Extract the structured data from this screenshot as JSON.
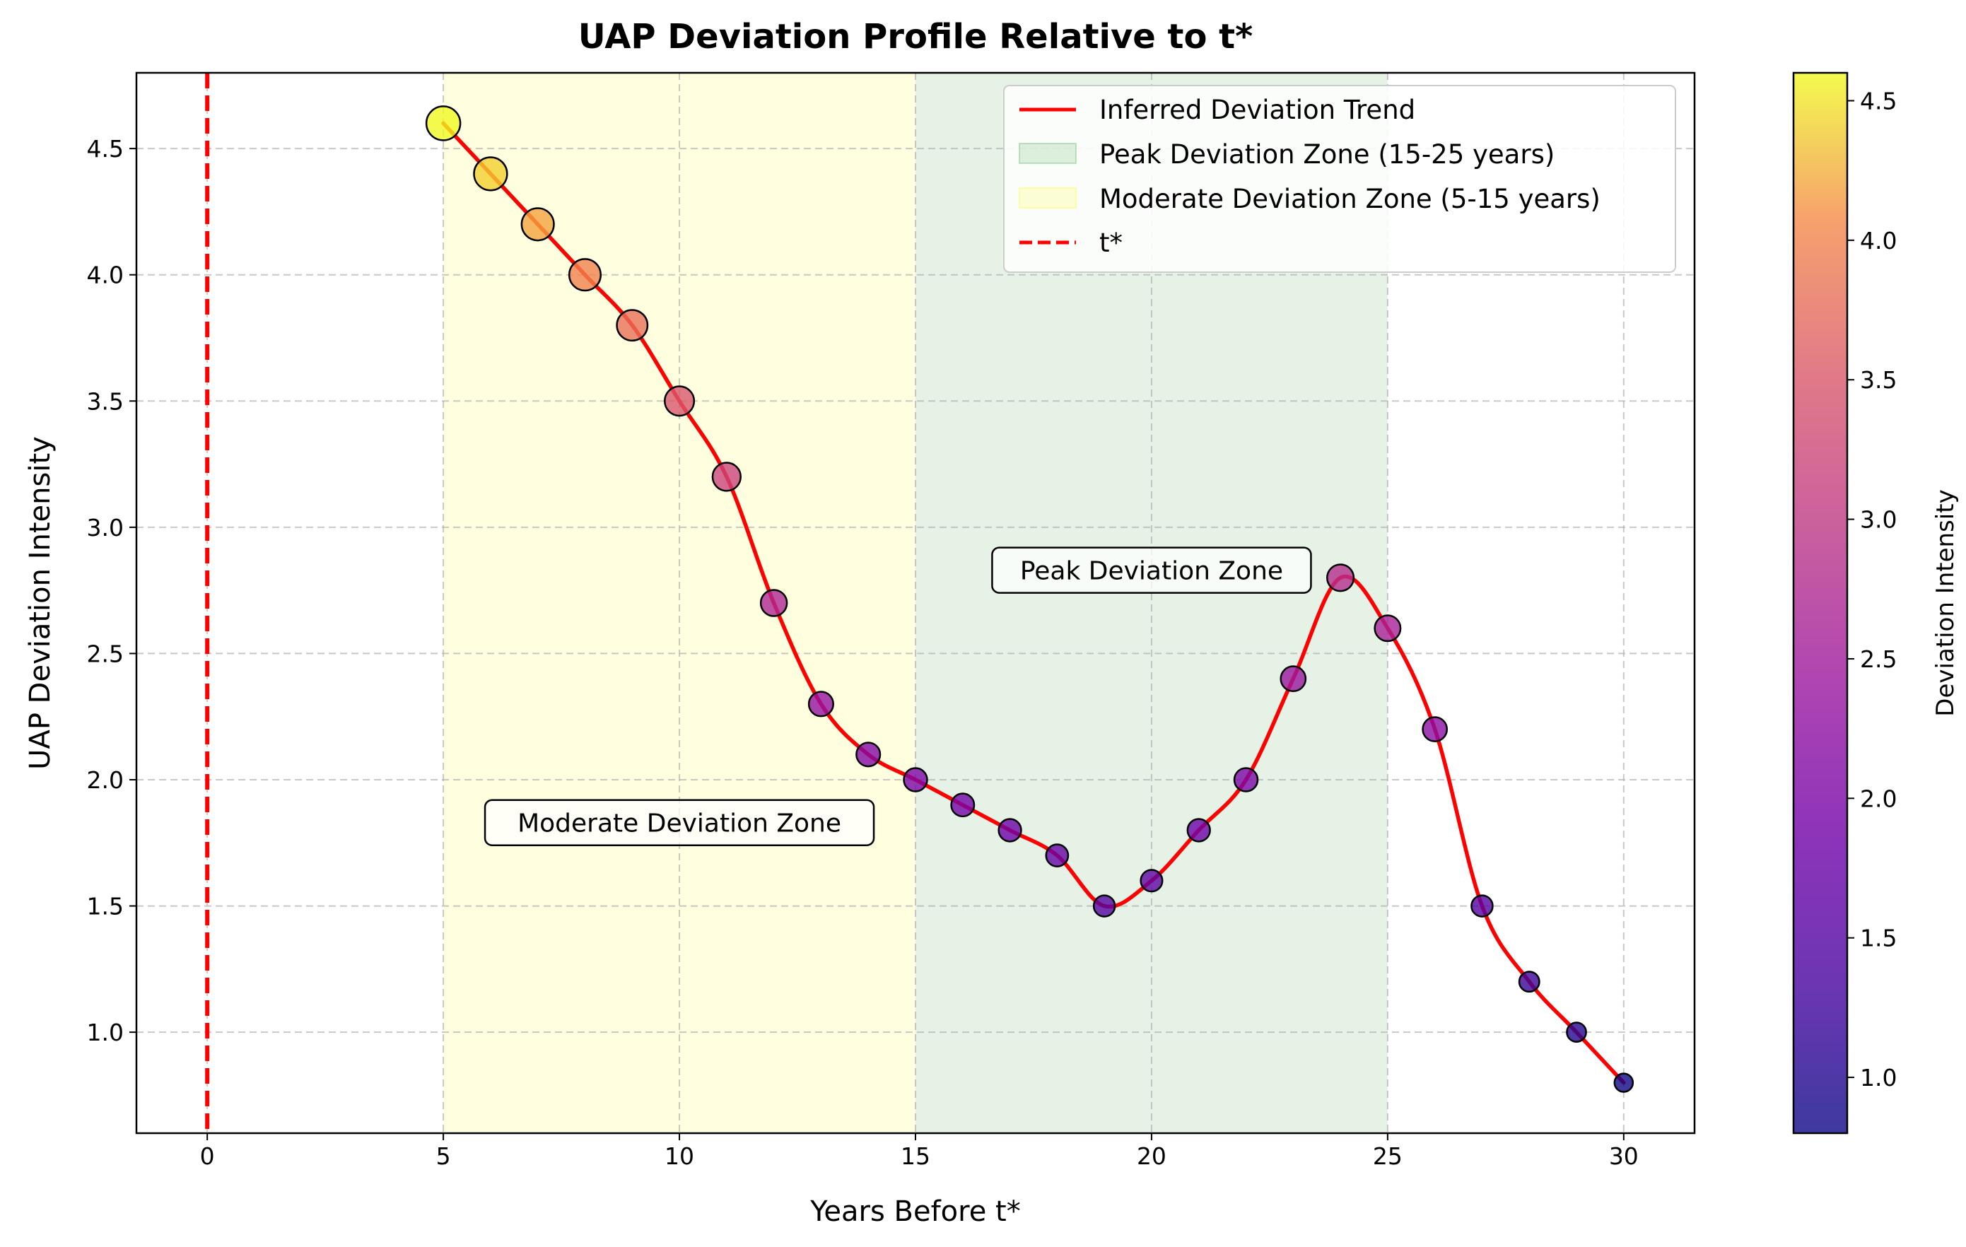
{
  "chart_data": {
    "type": "scatter",
    "title": "UAP Deviation Profile Relative to t*",
    "xlabel": "Years Before t*",
    "ylabel": "UAP Deviation Intensity",
    "xlim": [
      -1.5,
      31.5
    ],
    "ylim": [
      0.6,
      4.8
    ],
    "xticks": [
      0,
      5,
      10,
      15,
      20,
      25,
      30
    ],
    "yticks": [
      1.0,
      1.5,
      2.0,
      2.5,
      3.0,
      3.5,
      4.0,
      4.5
    ],
    "x": [
      5,
      6,
      7,
      8,
      9,
      10,
      11,
      12,
      13,
      14,
      15,
      16,
      17,
      18,
      19,
      20,
      21,
      22,
      23,
      24,
      25,
      26,
      27,
      28,
      29,
      30
    ],
    "y": [
      4.6,
      4.4,
      4.2,
      4.0,
      3.8,
      3.5,
      3.2,
      2.7,
      2.3,
      2.1,
      2.0,
      1.9,
      1.8,
      1.7,
      1.5,
      1.6,
      1.8,
      2.0,
      2.4,
      2.8,
      2.6,
      2.2,
      1.5,
      1.2,
      1.0,
      0.8
    ],
    "trend_line": {
      "label": "Inferred Deviation Trend",
      "color": "#ff0000"
    },
    "t_star_line": {
      "label": "t*",
      "x": 0,
      "color": "#ff0000"
    },
    "zones": [
      {
        "label": "Peak Deviation Zone (15-25 years)",
        "x_start": 15,
        "x_end": 25,
        "color": "#008000"
      },
      {
        "label": "Moderate Deviation Zone (5-15 years)",
        "x_start": 5,
        "x_end": 15,
        "color": "#ffff00"
      }
    ],
    "annotations": [
      {
        "text": "Moderate Deviation Zone",
        "x": 10,
        "y": 1.83
      },
      {
        "text": "Peak Deviation Zone",
        "x": 20,
        "y": 2.83
      }
    ],
    "colorbar": {
      "label": "Deviation Intensity",
      "min": 0.8,
      "max": 4.6,
      "ticks": [
        1.0,
        1.5,
        2.0,
        2.5,
        3.0,
        3.5,
        4.0,
        4.5
      ],
      "colormap": "plasma"
    },
    "legend": {
      "position": "top-right",
      "entries": [
        {
          "label": "Inferred Deviation Trend",
          "style": "line",
          "color": "#ff0000"
        },
        {
          "label": "Peak Deviation Zone (15-25 years)",
          "style": "patch",
          "color": "#008000"
        },
        {
          "label": "Moderate Deviation Zone (5-15 years)",
          "style": "patch",
          "color": "#ffff00"
        },
        {
          "label": "t*",
          "style": "dashed",
          "color": "#ff0000"
        }
      ]
    },
    "grid": true
  }
}
